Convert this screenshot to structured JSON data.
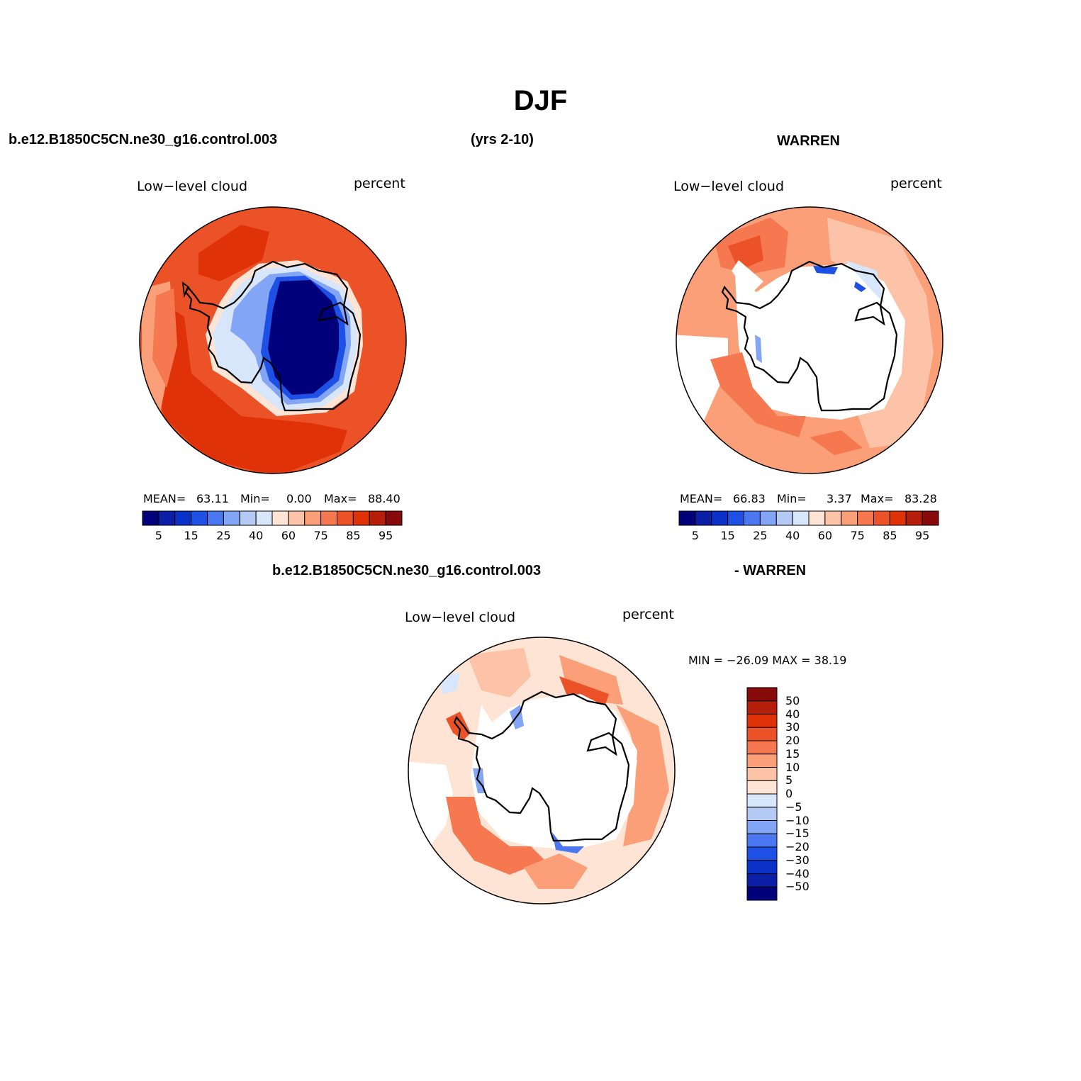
{
  "figure": {
    "title": "DJF",
    "case_name": "b.e12.B1850C5CN.ne30_g16.control.003",
    "years": "(yrs 2-10)",
    "obs_name": "WARREN",
    "diff_case_name": "b.e12.B1850C5CN.ne30_g16.control.003",
    "diff_obs_name": "- WARREN"
  },
  "panels": [
    {
      "variable": "Low−level cloud",
      "units": "percent",
      "stats": {
        "mean_label": "MEAN=",
        "mean": "63.11",
        "min_label": "Min=",
        "min": "0.00",
        "max_label": "Max=",
        "max": "88.40"
      }
    },
    {
      "variable": "Low−level cloud",
      "units": "percent",
      "stats": {
        "mean_label": "MEAN=",
        "mean": "66.83",
        "min_label": "Min=",
        "min": "3.37",
        "max_label": "Max=",
        "max": "83.28"
      }
    },
    {
      "variable": "Low−level cloud",
      "units": "percent",
      "minmax": "MIN = −26.09  MAX =   38.19"
    }
  ],
  "colorbar_abs": {
    "tick_labels": [
      "5",
      "15",
      "25",
      "40",
      "60",
      "75",
      "85",
      "95"
    ],
    "colors": [
      "#00007a",
      "#0a1ea6",
      "#0a32c8",
      "#1e50e6",
      "#4b78f0",
      "#82a5f5",
      "#b4caf5",
      "#d7e6fa",
      "#fde4d4",
      "#fcc3a8",
      "#fa9f78",
      "#f57850",
      "#ec5228",
      "#e03208",
      "#b41e0a",
      "#870a0a"
    ]
  },
  "colorbar_diff": {
    "labels": [
      "50",
      "40",
      "30",
      "20",
      "15",
      "10",
      "5",
      "0",
      "−5",
      "−10",
      "−15",
      "−20",
      "−30",
      "−40",
      "−50"
    ],
    "colors": [
      "#870a0a",
      "#b41e0a",
      "#e03208",
      "#ec5228",
      "#f57850",
      "#fa9f78",
      "#fcc3a8",
      "#fde4d4",
      "#d7e6fa",
      "#b4caf5",
      "#82a5f5",
      "#4b78f0",
      "#1e50e6",
      "#0a32c8",
      "#0a1ea6",
      "#00007a"
    ]
  }
}
